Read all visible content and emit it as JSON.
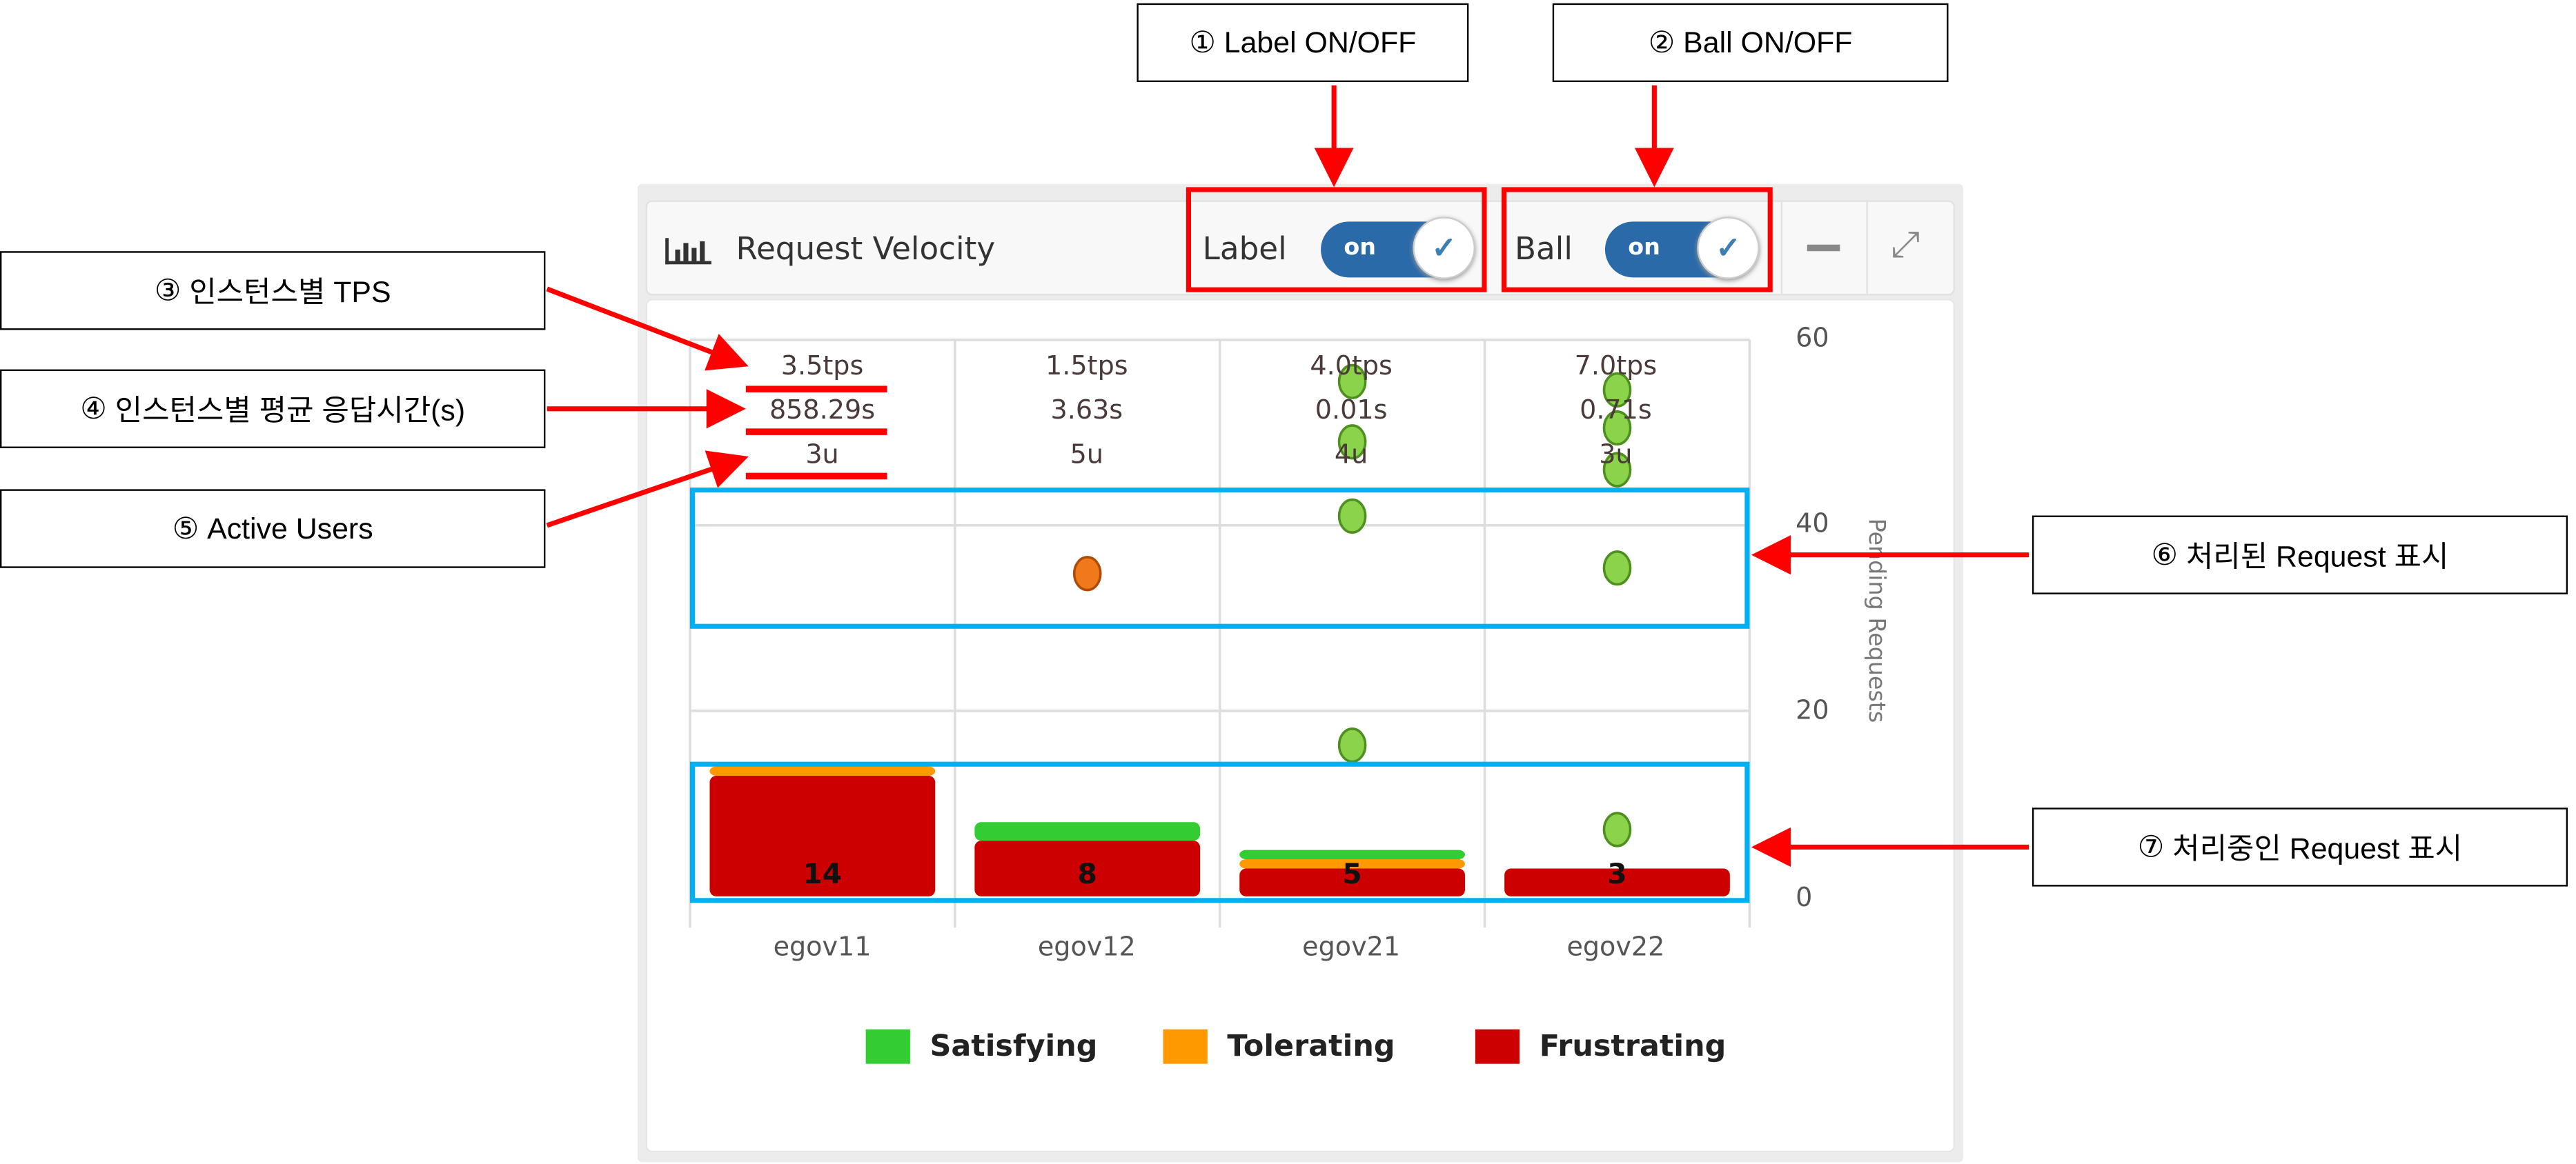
{
  "annotations": [
    {
      "num": "①",
      "text": "Label ON/OFF"
    },
    {
      "num": "②",
      "text": "Ball ON/OFF"
    },
    {
      "num": "③",
      "text": "인스턴스별 TPS"
    },
    {
      "num": "④",
      "text": "인스턴스별 평균 응답시간(s)"
    },
    {
      "num": "⑤",
      "text": "Active Users"
    },
    {
      "num": "⑥",
      "text": "처리된 Request 표시"
    },
    {
      "num": "⑦",
      "text": "처리중인 Request 표시"
    }
  ],
  "widget": {
    "title": "Request Velocity",
    "icon": "bar-chart-icon",
    "label_toggle": {
      "label": "Label",
      "state": "on"
    },
    "ball_toggle": {
      "label": "Ball",
      "state": "on"
    },
    "minimize_icon": "minimize-icon",
    "expand_icon": "expand-icon"
  },
  "instances": [
    {
      "name": "egov11",
      "tps": "3.5tps",
      "avg": "858.29s",
      "users": "3u"
    },
    {
      "name": "egov12",
      "tps": "1.5tps",
      "avg": "3.63s",
      "users": "5u"
    },
    {
      "name": "egov21",
      "tps": "4.0tps",
      "avg": "0.01s",
      "users": "4u"
    },
    {
      "name": "egov22",
      "tps": "7.0tps",
      "avg": "0.71s",
      "users": "3u"
    }
  ],
  "colors": {
    "satisfying": "#33cc33",
    "tolerating": "#ff9900",
    "frustrating": "#cc0000"
  },
  "chart_data": {
    "type": "bar",
    "stacked": true,
    "categories": [
      "egov11",
      "egov12",
      "egov21",
      "egov22"
    ],
    "series": [
      {
        "name": "Frustrating",
        "key": "frustrating",
        "values": [
          13,
          6,
          3,
          3
        ]
      },
      {
        "name": "Tolerating",
        "key": "tolerating",
        "values": [
          1,
          0,
          1,
          0
        ]
      },
      {
        "name": "Satisfying",
        "key": "satisfying",
        "values": [
          0,
          2,
          1,
          0
        ]
      }
    ],
    "totals": [
      "14",
      "8",
      "5",
      "3"
    ],
    "ylabel": "Pending Requests",
    "ylim": [
      0,
      60
    ],
    "yticks": [
      "0",
      "20",
      "40",
      "60"
    ],
    "legend": [
      "Satisfying",
      "Tolerating",
      "Frustrating"
    ],
    "legend_position": "bottom",
    "balls": [
      {
        "cat": 2,
        "y": 55.5,
        "color": "green"
      },
      {
        "cat": 2,
        "y": 49,
        "color": "green"
      },
      {
        "cat": 2,
        "y": 41,
        "color": "green"
      },
      {
        "cat": 2,
        "y": 16.3,
        "color": "green"
      },
      {
        "cat": 3,
        "y": 54.6,
        "color": "green"
      },
      {
        "cat": 3,
        "y": 50.5,
        "color": "green"
      },
      {
        "cat": 3,
        "y": 46,
        "color": "green"
      },
      {
        "cat": 3,
        "y": 35.4,
        "color": "green"
      },
      {
        "cat": 3,
        "y": 7.2,
        "color": "green"
      },
      {
        "cat": 1,
        "y": 34.8,
        "color": "orange"
      }
    ]
  }
}
